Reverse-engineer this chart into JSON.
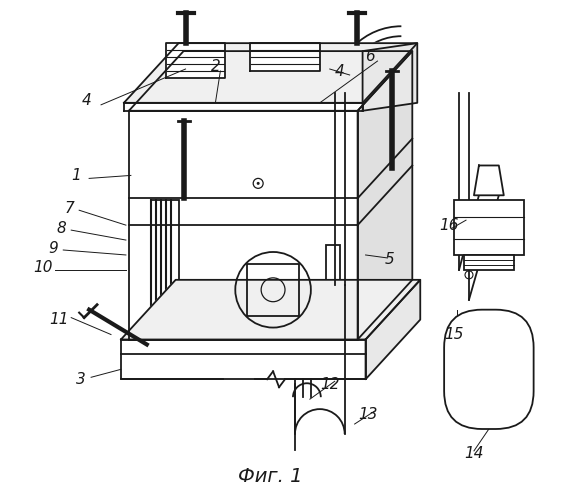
{
  "title": "Фиг. 1",
  "background": "#ffffff",
  "line_color": "#1a1a1a",
  "fig_width": 5.75,
  "fig_height": 5.0,
  "lw": 1.3
}
